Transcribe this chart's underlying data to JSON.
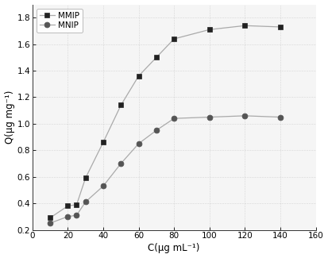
{
  "MMIP_x": [
    10,
    20,
    25,
    30,
    40,
    50,
    60,
    70,
    80,
    100,
    120,
    140
  ],
  "MMIP_y": [
    0.29,
    0.38,
    0.39,
    0.59,
    0.86,
    1.14,
    1.36,
    1.5,
    1.64,
    1.71,
    1.74,
    1.73
  ],
  "MNIP_x": [
    10,
    20,
    25,
    30,
    40,
    50,
    60,
    70,
    80,
    100,
    120,
    140
  ],
  "MNIP_y": [
    0.25,
    0.3,
    0.31,
    0.41,
    0.53,
    0.7,
    0.85,
    0.95,
    1.04,
    1.05,
    1.06,
    1.05
  ],
  "xlabel": "C(μg mL⁻¹)",
  "ylabel": "Q(μg mg⁻¹)",
  "xlim": [
    0,
    160
  ],
  "ylim": [
    0.2,
    1.9
  ],
  "xticks": [
    0,
    20,
    40,
    60,
    80,
    100,
    120,
    140,
    160
  ],
  "yticks": [
    0.2,
    0.4,
    0.6,
    0.8,
    1.0,
    1.2,
    1.4,
    1.6,
    1.8
  ],
  "line_color": "#aaaaaa",
  "MMIP_marker_color": "#222222",
  "MNIP_marker_color": "#555555",
  "background_color": "#f5f5f5",
  "legend_labels": [
    "MMIP",
    "MNIP"
  ]
}
